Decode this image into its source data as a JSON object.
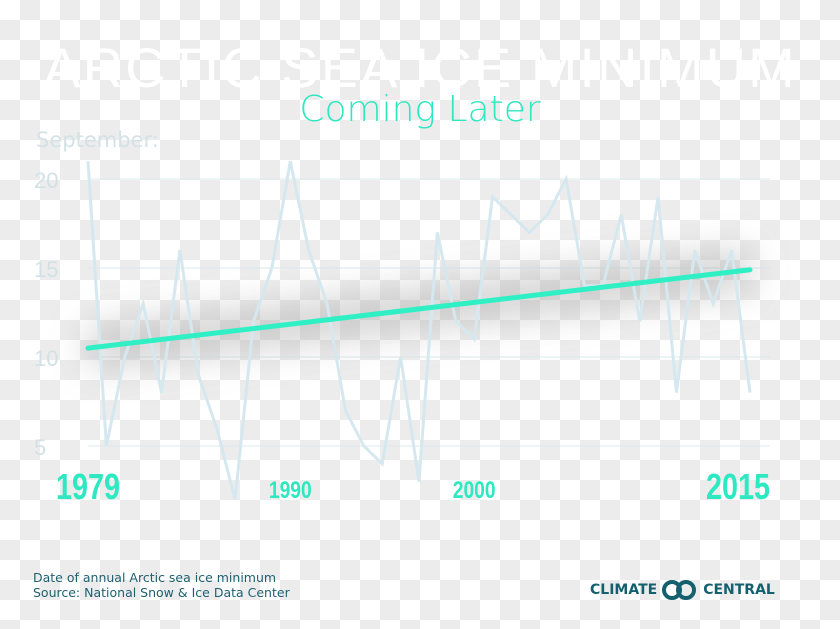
{
  "header": {
    "title": "ARCTIC SEA ICE MINIMUM",
    "subtitle": "Coming Later",
    "ylabel": "September:"
  },
  "footer": {
    "line1": "Date of annual Arctic sea ice minimum",
    "line2": "Source: National Snow & Ice Data Center",
    "logo_left": "CLIMATE",
    "logo_right": "CENTRAL"
  },
  "colors": {
    "trend": "#2ef0c4",
    "data": "#d6e8ef",
    "accent": "#2de8c0"
  },
  "chart_data": {
    "type": "line",
    "title": "ARCTIC SEA ICE MINIMUM",
    "subtitle": "Coming Later",
    "ylabel": "September:",
    "xlabel": "",
    "ylim": [
      3,
      21
    ],
    "xlim": [
      1979,
      2015
    ],
    "yticks": [
      5,
      10,
      15,
      20
    ],
    "xticks": [
      {
        "year": 1979,
        "label": "1979",
        "big": true
      },
      {
        "year": 1990,
        "label": "1990",
        "big": false
      },
      {
        "year": 2000,
        "label": "2000",
        "big": false
      },
      {
        "year": 2015,
        "label": "2015",
        "big": true
      }
    ],
    "grid": true,
    "x": [
      1979,
      1980,
      1981,
      1982,
      1983,
      1984,
      1985,
      1986,
      1987,
      1988,
      1989,
      1990,
      1991,
      1992,
      1993,
      1994,
      1995,
      1996,
      1997,
      1998,
      1999,
      2000,
      2001,
      2002,
      2003,
      2004,
      2005,
      2006,
      2007,
      2008,
      2009,
      2010,
      2011,
      2012,
      2013,
      2014,
      2015
    ],
    "series": [
      {
        "name": "Date of minimum (September day)",
        "values": [
          21,
          5,
          10,
          13,
          8,
          16,
          9,
          6,
          2,
          12,
          15,
          21,
          16,
          13,
          7,
          5,
          4,
          10,
          3,
          17,
          12,
          11,
          19,
          18,
          17,
          18,
          20,
          14,
          14,
          18,
          12,
          19,
          8,
          16,
          13,
          16,
          8
        ]
      },
      {
        "name": "Trend",
        "x": [
          1979,
          2015
        ],
        "values": [
          10.5,
          14.9
        ]
      }
    ]
  }
}
